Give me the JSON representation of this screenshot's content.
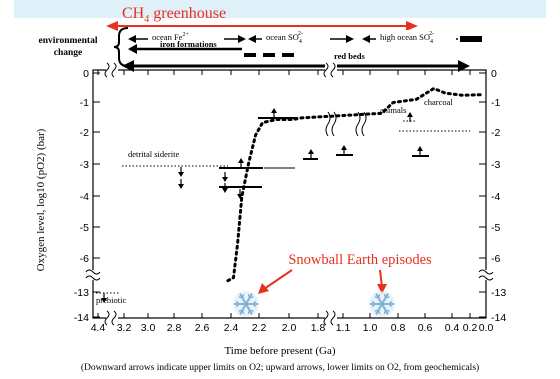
{
  "colors": {
    "accent_red": "#e8301e",
    "band_blue": "#dff0f8",
    "snowflake": "#7fb3d6",
    "ink": "#000000"
  },
  "header": {
    "ch4_label": "CH",
    "ch4_sub": "4",
    "ch4_rest": " greenhouse",
    "env_label_1": "environmental",
    "env_label_2": "change",
    "fe_label": "ocean Fe",
    "fe_sup": "2+",
    "so4_label": "ocean SO",
    "so4_sub": "4",
    "so4_sup": "2-",
    "high_so4_label": "high ocean SO",
    "high_so4_sub": "4",
    "high_so4_sup": "2-",
    "iron_label": "iron formations",
    "redbeds_label": "red beds"
  },
  "chart_data": {
    "type": "line",
    "xlabel": "Time before present (Ga)",
    "ylabel": "Oxygen level, log10 (pO2) (bar)",
    "caption": "(Downward arrows indicate upper limits on O2; upward arrows, lower limits on O2, from geochemicals)",
    "x_ticks": [
      "4.4",
      "3.2",
      "3.0",
      "2.8",
      "2.6",
      "2.4",
      "2.2",
      "2.0",
      "1.8",
      "1.1",
      "1.0",
      "0.8",
      "0.6",
      "0.4",
      "0.2",
      "0.0"
    ],
    "y_ticks": [
      "0",
      "-1",
      "-2",
      "-3",
      "-4",
      "-5",
      "-6",
      "-13",
      "-14"
    ],
    "annotations": {
      "detrital_siderite": "detrital siderite",
      "prebiotic": "prebiotic",
      "animals": "animals",
      "charcoal": "charcoal",
      "snowball": "Snowball Earth episodes"
    },
    "oxygen_curve": [
      {
        "x": 2.45,
        "y": -6.7
      },
      {
        "x": 2.41,
        "y": -6.6
      },
      {
        "x": 2.38,
        "y": -5.5
      },
      {
        "x": 2.35,
        "y": -4.0
      },
      {
        "x": 2.3,
        "y": -2.9
      },
      {
        "x": 2.25,
        "y": -2.0
      },
      {
        "x": 2.2,
        "y": -1.6
      },
      {
        "x": 2.1,
        "y": -1.5
      },
      {
        "x": 1.98,
        "y": -1.5
      },
      {
        "x": 1.92,
        "y": -1.45
      },
      {
        "x": 0.9,
        "y": -1.3
      },
      {
        "x": 0.8,
        "y": -0.95
      },
      {
        "x": 0.6,
        "y": -0.85
      },
      {
        "x": 0.45,
        "y": -0.5
      },
      {
        "x": 0.35,
        "y": -0.65
      },
      {
        "x": 0.2,
        "y": -0.72
      },
      {
        "x": 0.05,
        "y": -0.7
      }
    ]
  }
}
